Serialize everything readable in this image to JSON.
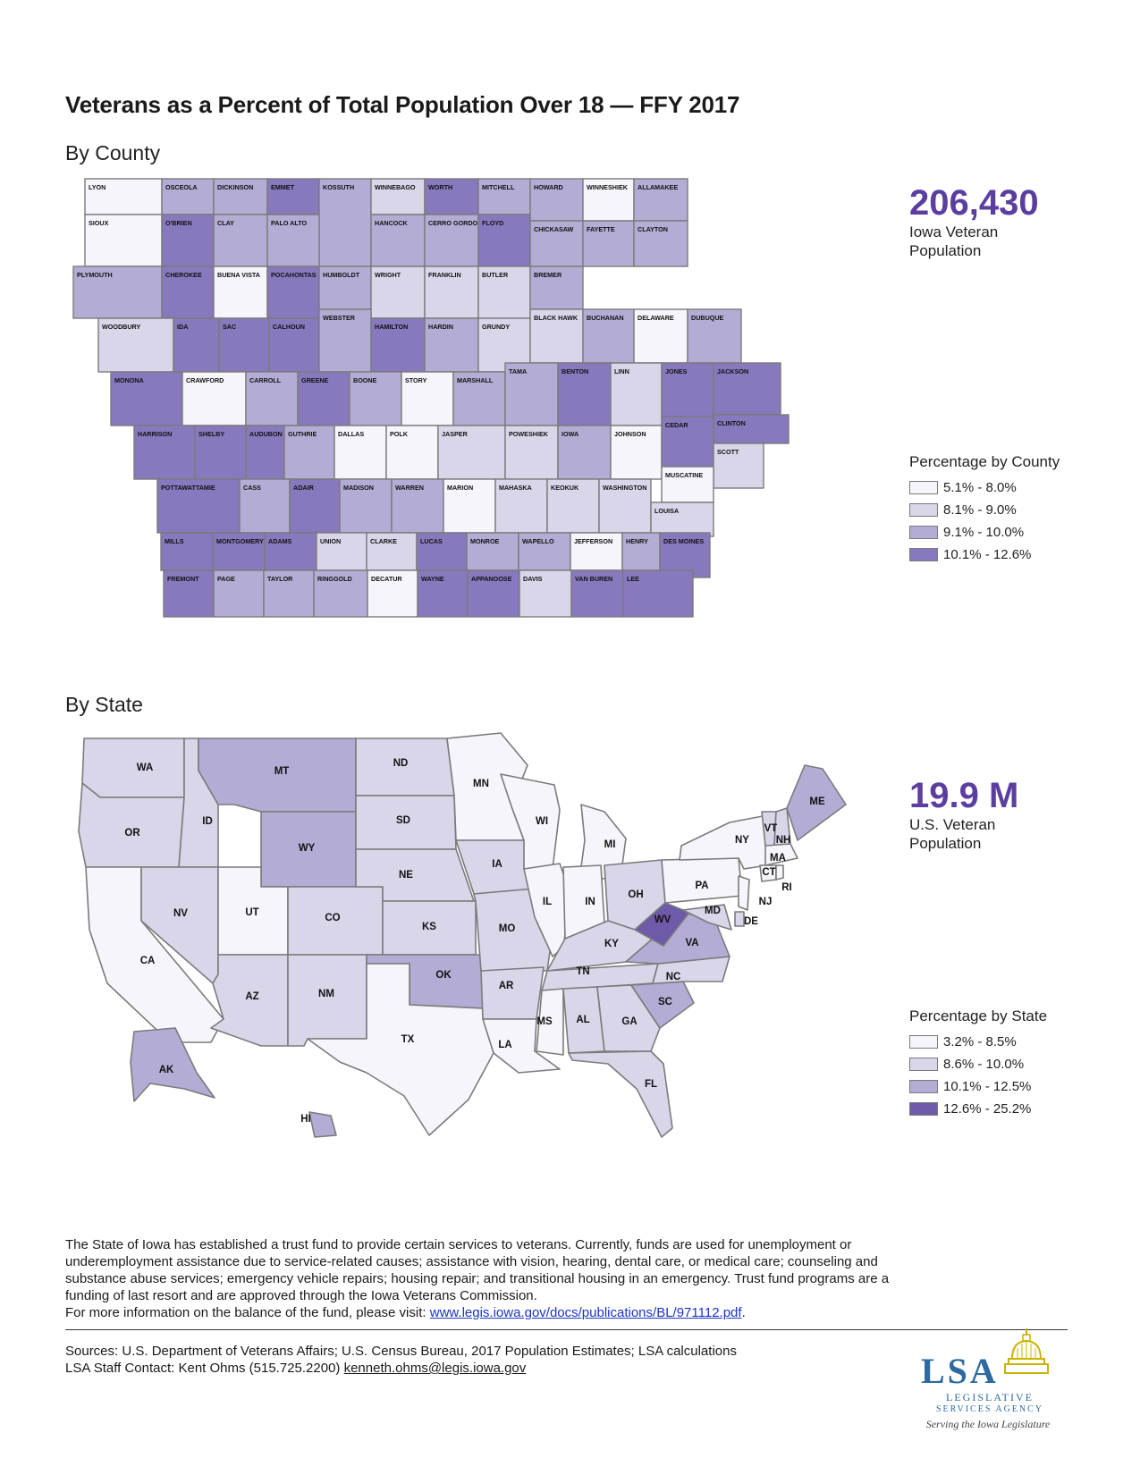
{
  "title": "Veterans as a Percent of Total Population Over 18 — FFY 2017",
  "colors": {
    "c1": "#f6f5fb",
    "c2": "#d9d6ea",
    "c3": "#b3acd4",
    "c4": "#8878bd",
    "c5": "#6e5aa8",
    "stroke": "#7b7b7b",
    "accent": "#5b3ea0"
  },
  "county_section": {
    "heading": "By County",
    "stat_value": "206,430",
    "stat_label": "Iowa Veteran Population",
    "legend_title": "Percentage by County",
    "legend": [
      {
        "range": "5.1% - 8.0%",
        "cls": "c1"
      },
      {
        "range": "8.1% - 9.0%",
        "cls": "c2"
      },
      {
        "range": "9.1% - 10.0%",
        "cls": "c3"
      },
      {
        "range": "10.1% - 12.6%",
        "cls": "c4"
      }
    ],
    "counties": [
      {
        "name": "LYON",
        "cls": "c1"
      },
      {
        "name": "OSCEOLA",
        "cls": "c3"
      },
      {
        "name": "DICKINSON",
        "cls": "c3"
      },
      {
        "name": "EMMET",
        "cls": "c4"
      },
      {
        "name": "KOSSUTH",
        "cls": "c3"
      },
      {
        "name": "WINNEBAGO",
        "cls": "c2"
      },
      {
        "name": "WORTH",
        "cls": "c4"
      },
      {
        "name": "MITCHELL",
        "cls": "c3"
      },
      {
        "name": "HOWARD",
        "cls": "c3"
      },
      {
        "name": "WINNESHIEK",
        "cls": "c1"
      },
      {
        "name": "ALLAMAKEE",
        "cls": "c3"
      },
      {
        "name": "SIOUX",
        "cls": "c1"
      },
      {
        "name": "O'BRIEN",
        "cls": "c4"
      },
      {
        "name": "CLAY",
        "cls": "c3"
      },
      {
        "name": "PALO ALTO",
        "cls": "c3"
      },
      {
        "name": "HANCOCK",
        "cls": "c3"
      },
      {
        "name": "CERRO GORDO",
        "cls": "c3"
      },
      {
        "name": "FLOYD",
        "cls": "c4"
      },
      {
        "name": "CHICKASAW",
        "cls": "c3"
      },
      {
        "name": "FAYETTE",
        "cls": "c3"
      },
      {
        "name": "CLAYTON",
        "cls": "c3"
      },
      {
        "name": "PLYMOUTH",
        "cls": "c3"
      },
      {
        "name": "CHEROKEE",
        "cls": "c4"
      },
      {
        "name": "BUENA VISTA",
        "cls": "c1"
      },
      {
        "name": "POCAHONTAS",
        "cls": "c4"
      },
      {
        "name": "HUMBOLDT",
        "cls": "c3"
      },
      {
        "name": "WRIGHT",
        "cls": "c2"
      },
      {
        "name": "FRANKLIN",
        "cls": "c2"
      },
      {
        "name": "BUTLER",
        "cls": "c2"
      },
      {
        "name": "BREMER",
        "cls": "c3"
      },
      {
        "name": "WOODBURY",
        "cls": "c2"
      },
      {
        "name": "IDA",
        "cls": "c4"
      },
      {
        "name": "SAC",
        "cls": "c4"
      },
      {
        "name": "CALHOUN",
        "cls": "c4"
      },
      {
        "name": "WEBSTER",
        "cls": "c3"
      },
      {
        "name": "HAMILTON",
        "cls": "c4"
      },
      {
        "name": "HARDIN",
        "cls": "c3"
      },
      {
        "name": "GRUNDY",
        "cls": "c2"
      },
      {
        "name": "BLACK HAWK",
        "cls": "c2"
      },
      {
        "name": "BUCHANAN",
        "cls": "c3"
      },
      {
        "name": "DELAWARE",
        "cls": "c1"
      },
      {
        "name": "DUBUQUE",
        "cls": "c3"
      },
      {
        "name": "MONONA",
        "cls": "c4"
      },
      {
        "name": "CRAWFORD",
        "cls": "c1"
      },
      {
        "name": "CARROLL",
        "cls": "c3"
      },
      {
        "name": "GREENE",
        "cls": "c4"
      },
      {
        "name": "BOONE",
        "cls": "c3"
      },
      {
        "name": "STORY",
        "cls": "c1"
      },
      {
        "name": "MARSHALL",
        "cls": "c3"
      },
      {
        "name": "TAMA",
        "cls": "c3"
      },
      {
        "name": "BENTON",
        "cls": "c4"
      },
      {
        "name": "LINN",
        "cls": "c2"
      },
      {
        "name": "JONES",
        "cls": "c4"
      },
      {
        "name": "JACKSON",
        "cls": "c4"
      },
      {
        "name": "HARRISON",
        "cls": "c4"
      },
      {
        "name": "SHELBY",
        "cls": "c4"
      },
      {
        "name": "AUDUBON",
        "cls": "c4"
      },
      {
        "name": "GUTHRIE",
        "cls": "c3"
      },
      {
        "name": "DALLAS",
        "cls": "c1"
      },
      {
        "name": "POLK",
        "cls": "c1"
      },
      {
        "name": "JASPER",
        "cls": "c2"
      },
      {
        "name": "POWESHIEK",
        "cls": "c2"
      },
      {
        "name": "IOWA",
        "cls": "c3"
      },
      {
        "name": "JOHNSON",
        "cls": "c1"
      },
      {
        "name": "CEDAR",
        "cls": "c4"
      },
      {
        "name": "CLINTON",
        "cls": "c4"
      },
      {
        "name": "SCOTT",
        "cls": "c2"
      },
      {
        "name": "POTTAWATTAMIE",
        "cls": "c4"
      },
      {
        "name": "CASS",
        "cls": "c3"
      },
      {
        "name": "ADAIR",
        "cls": "c4"
      },
      {
        "name": "MADISON",
        "cls": "c3"
      },
      {
        "name": "WARREN",
        "cls": "c3"
      },
      {
        "name": "MARION",
        "cls": "c1"
      },
      {
        "name": "MAHASKA",
        "cls": "c2"
      },
      {
        "name": "KEOKUK",
        "cls": "c2"
      },
      {
        "name": "WASHINGTON",
        "cls": "c2"
      },
      {
        "name": "MUSCATINE",
        "cls": "c1"
      },
      {
        "name": "LOUISA",
        "cls": "c2"
      },
      {
        "name": "MILLS",
        "cls": "c4"
      },
      {
        "name": "MONTGOMERY",
        "cls": "c4"
      },
      {
        "name": "ADAMS",
        "cls": "c4"
      },
      {
        "name": "UNION",
        "cls": "c2"
      },
      {
        "name": "CLARKE",
        "cls": "c2"
      },
      {
        "name": "LUCAS",
        "cls": "c4"
      },
      {
        "name": "MONROE",
        "cls": "c3"
      },
      {
        "name": "WAPELLO",
        "cls": "c3"
      },
      {
        "name": "JEFFERSON",
        "cls": "c1"
      },
      {
        "name": "HENRY",
        "cls": "c3"
      },
      {
        "name": "DES MOINES",
        "cls": "c4"
      },
      {
        "name": "FREMONT",
        "cls": "c4"
      },
      {
        "name": "PAGE",
        "cls": "c3"
      },
      {
        "name": "TAYLOR",
        "cls": "c3"
      },
      {
        "name": "RINGGOLD",
        "cls": "c3"
      },
      {
        "name": "DECATUR",
        "cls": "c1"
      },
      {
        "name": "WAYNE",
        "cls": "c4"
      },
      {
        "name": "APPANOOSE",
        "cls": "c4"
      },
      {
        "name": "DAVIS",
        "cls": "c2"
      },
      {
        "name": "VAN BUREN",
        "cls": "c4"
      },
      {
        "name": "LEE",
        "cls": "c4"
      }
    ]
  },
  "state_section": {
    "heading": "By State",
    "stat_value": "19.9 M",
    "stat_label": "U.S. Veteran Population",
    "legend_title": "Percentage by State",
    "legend": [
      {
        "range": "3.2% - 8.5%",
        "cls": "c1"
      },
      {
        "range": "8.6% - 10.0%",
        "cls": "c2"
      },
      {
        "range": "10.1% - 12.5%",
        "cls": "c3"
      },
      {
        "range": "12.6% - 25.2%",
        "cls": "c5"
      }
    ],
    "states": [
      {
        "abbr": "WA",
        "cls": "c2"
      },
      {
        "abbr": "OR",
        "cls": "c2"
      },
      {
        "abbr": "CA",
        "cls": "c1"
      },
      {
        "abbr": "ID",
        "cls": "c2"
      },
      {
        "abbr": "NV",
        "cls": "c2"
      },
      {
        "abbr": "MT",
        "cls": "c3"
      },
      {
        "abbr": "WY",
        "cls": "c3"
      },
      {
        "abbr": "UT",
        "cls": "c1"
      },
      {
        "abbr": "AZ",
        "cls": "c2"
      },
      {
        "abbr": "CO",
        "cls": "c2"
      },
      {
        "abbr": "NM",
        "cls": "c2"
      },
      {
        "abbr": "ND",
        "cls": "c2"
      },
      {
        "abbr": "SD",
        "cls": "c2"
      },
      {
        "abbr": "NE",
        "cls": "c2"
      },
      {
        "abbr": "KS",
        "cls": "c2"
      },
      {
        "abbr": "OK",
        "cls": "c3"
      },
      {
        "abbr": "TX",
        "cls": "c1"
      },
      {
        "abbr": "MN",
        "cls": "c1"
      },
      {
        "abbr": "IA",
        "cls": "c2"
      },
      {
        "abbr": "MO",
        "cls": "c2"
      },
      {
        "abbr": "AR",
        "cls": "c2"
      },
      {
        "abbr": "LA",
        "cls": "c1"
      },
      {
        "abbr": "WI",
        "cls": "c1"
      },
      {
        "abbr": "IL",
        "cls": "c1"
      },
      {
        "abbr": "MI",
        "cls": "c1"
      },
      {
        "abbr": "IN",
        "cls": "c1"
      },
      {
        "abbr": "OH",
        "cls": "c2"
      },
      {
        "abbr": "KY",
        "cls": "c2"
      },
      {
        "abbr": "TN",
        "cls": "c2"
      },
      {
        "abbr": "MS",
        "cls": "c1"
      },
      {
        "abbr": "AL",
        "cls": "c2"
      },
      {
        "abbr": "GA",
        "cls": "c2"
      },
      {
        "abbr": "FL",
        "cls": "c2"
      },
      {
        "abbr": "SC",
        "cls": "c3"
      },
      {
        "abbr": "NC",
        "cls": "c2"
      },
      {
        "abbr": "VA",
        "cls": "c3"
      },
      {
        "abbr": "WV",
        "cls": "c5"
      },
      {
        "abbr": "PA",
        "cls": "c1"
      },
      {
        "abbr": "NY",
        "cls": "c1"
      },
      {
        "abbr": "VT",
        "cls": "c2"
      },
      {
        "abbr": "NH",
        "cls": "c2"
      },
      {
        "abbr": "ME",
        "cls": "c3"
      },
      {
        "abbr": "MA",
        "cls": "c1"
      },
      {
        "abbr": "CT",
        "cls": "c1"
      },
      {
        "abbr": "RI",
        "cls": "c1"
      },
      {
        "abbr": "NJ",
        "cls": "c1"
      },
      {
        "abbr": "DE",
        "cls": "c2"
      },
      {
        "abbr": "MD",
        "cls": "c2"
      },
      {
        "abbr": "AK",
        "cls": "c3"
      },
      {
        "abbr": "HI",
        "cls": "c3"
      }
    ]
  },
  "paragraph": {
    "text": "The State of Iowa has established a trust fund to provide certain services to veterans.  Currently, funds are used for unemployment or underemployment assistance due to service-related causes; assistance with vision, hearing, dental care, or medical care; counseling and substance abuse services; emergency vehicle repairs; housing repair; and transitional housing in an emergency. Trust fund programs are a funding of last resort and are approved through the Iowa Veterans Commission.",
    "link_prefix": "For more information on the balance of the fund, please visit:  ",
    "link_text": "www.legis.iowa.gov/docs/publications/BL/971112.pdf",
    "link_suffix": "."
  },
  "footer": {
    "sources": "Sources:  U.S. Department of Veterans Affairs; U.S. Census Bureau, 2017 Population Estimates; LSA calculations",
    "contact_prefix": "LSA Staff Contact:  Kent Ohms (515.725.2200) ",
    "contact_email": "kenneth.ohms@legis.iowa.gov"
  },
  "logo": {
    "letters": "LSA",
    "line1": "LEGISLATIVE",
    "line2": "SERVICES AGENCY",
    "tagline": "Serving the Iowa Legislature"
  }
}
